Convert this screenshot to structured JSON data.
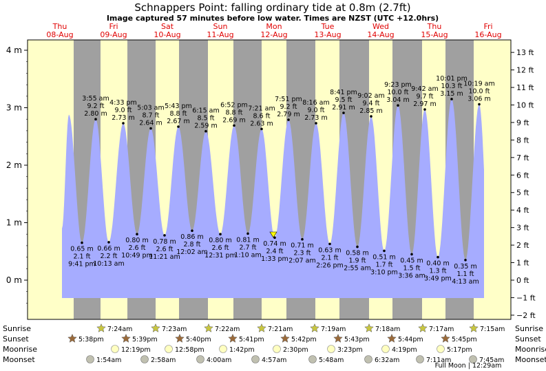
{
  "chart_data": {
    "type": "area",
    "title": "Schnappers Point: falling  ordinary tide at 0.8m (2.7ft)",
    "subtitle": "Image captured 57 minutes before low water. Times are NZST (UTC +12.0hrs)",
    "y_left": {
      "unit": "m",
      "range": [
        -0.5,
        4.2
      ],
      "ticks": [
        "0 m",
        "1 m",
        "2 m",
        "3 m",
        "4 m"
      ],
      "tick_values": [
        0,
        1,
        2,
        3,
        4
      ]
    },
    "y_right": {
      "unit": "ft",
      "ticks": [
        "−2 ft",
        "−1 ft",
        "0 ft",
        "1 ft",
        "2 ft",
        "3 ft",
        "4 ft",
        "5 ft",
        "6 ft",
        "7 ft",
        "8 ft",
        "9 ft",
        "10 ft",
        "11 ft",
        "12 ft",
        "13 ft"
      ],
      "tick_values": [
        -2,
        -1,
        0,
        1,
        2,
        3,
        4,
        5,
        6,
        7,
        8,
        9,
        10,
        11,
        12,
        13
      ]
    },
    "days": [
      {
        "name": "Thu",
        "date": "08-Aug"
      },
      {
        "name": "Fri",
        "date": "09-Aug"
      },
      {
        "name": "Sat",
        "date": "10-Aug"
      },
      {
        "name": "Sun",
        "date": "11-Aug"
      },
      {
        "name": "Mon",
        "date": "12-Aug"
      },
      {
        "name": "Tue",
        "date": "13-Aug"
      },
      {
        "name": "Wed",
        "date": "14-Aug"
      },
      {
        "name": "Thu",
        "date": "15-Aug"
      },
      {
        "name": "Fri",
        "date": "16-Aug"
      }
    ],
    "first_high_m": 2.88,
    "current": {
      "height_m": 0.8,
      "height_ft": 2.7,
      "state": "falling"
    },
    "extremes": [
      {
        "type": "low",
        "time": "9:41 pm",
        "m": "0.65 m",
        "ft": "2.1 ft",
        "value": 0.65
      },
      {
        "type": "high",
        "time": "3:55 am",
        "m": "2.80 m",
        "ft": "9.2 ft",
        "value": 2.8
      },
      {
        "type": "low",
        "time": "10:13 am",
        "m": "0.66 m",
        "ft": "2.2 ft",
        "value": 0.66
      },
      {
        "type": "high",
        "time": "4:33 pm",
        "m": "2.73 m",
        "ft": "9.0 ft",
        "value": 2.73
      },
      {
        "type": "low",
        "time": "10:49 pm",
        "m": "0.80 m",
        "ft": "2.6 ft",
        "value": 0.8
      },
      {
        "type": "high",
        "time": "5:03 am",
        "m": "2.64 m",
        "ft": "8.7 ft",
        "value": 2.64
      },
      {
        "type": "low",
        "time": "11:21 am",
        "m": "0.78 m",
        "ft": "2.6 ft",
        "value": 0.78
      },
      {
        "type": "high",
        "time": "5:43 pm",
        "m": "2.67 m",
        "ft": "8.8 ft",
        "value": 2.67
      },
      {
        "type": "low",
        "time": "12:02 am",
        "m": "0.86 m",
        "ft": "2.8 ft",
        "value": 0.86
      },
      {
        "type": "high",
        "time": "6:15 am",
        "m": "2.59 m",
        "ft": "8.5 ft",
        "value": 2.59
      },
      {
        "type": "low",
        "time": "12:31 pm",
        "m": "0.80 m",
        "ft": "2.6 ft",
        "value": 0.8
      },
      {
        "type": "high",
        "time": "6:52 pm",
        "m": "2.69 m",
        "ft": "8.8 ft",
        "value": 2.69
      },
      {
        "type": "low",
        "time": "1:10 am",
        "m": "0.81 m",
        "ft": "2.7 ft",
        "value": 0.81
      },
      {
        "type": "high",
        "time": "7:21 am",
        "m": "2.63 m",
        "ft": "8.6 ft",
        "value": 2.63
      },
      {
        "type": "low",
        "time": "1:33 pm",
        "m": "0.74 m",
        "ft": "2.4 ft",
        "value": 0.74
      },
      {
        "type": "high",
        "time": "7:51 pm",
        "m": "2.79 m",
        "ft": "9.2 ft",
        "value": 2.79
      },
      {
        "type": "low",
        "time": "2:07 am",
        "m": "0.71 m",
        "ft": "2.3 ft",
        "value": 0.71
      },
      {
        "type": "high",
        "time": "8:16 am",
        "m": "2.73 m",
        "ft": "9.0 ft",
        "value": 2.73
      },
      {
        "type": "low",
        "time": "2:26 pm",
        "m": "0.63 m",
        "ft": "2.1 ft",
        "value": 0.63
      },
      {
        "type": "high",
        "time": "8:41 pm",
        "m": "2.91 m",
        "ft": "9.5 ft",
        "value": 2.91
      },
      {
        "type": "low",
        "time": "2:55 am",
        "m": "0.58 m",
        "ft": "1.9 ft",
        "value": 0.58
      },
      {
        "type": "high",
        "time": "9:02 am",
        "m": "2.85 m",
        "ft": "9.4 ft",
        "value": 2.85
      },
      {
        "type": "low",
        "time": "3:10 pm",
        "m": "0.51 m",
        "ft": "1.7 ft",
        "value": 0.51
      },
      {
        "type": "high",
        "time": "9:23 pm",
        "m": "3.04 m",
        "ft": "10.0 ft",
        "value": 3.04
      },
      {
        "type": "low",
        "time": "3:36 am",
        "m": "0.45 m",
        "ft": "1.5 ft",
        "value": 0.45
      },
      {
        "type": "high",
        "time": "9:42 am",
        "m": "2.97 m",
        "ft": "9.7 ft",
        "value": 2.97
      },
      {
        "type": "low",
        "time": "3:49 pm",
        "m": "0.40 m",
        "ft": "1.3 ft",
        "value": 0.4
      },
      {
        "type": "high",
        "time": "10:01 pm",
        "m": "3.15 m",
        "ft": "10.3 ft",
        "value": 3.15
      },
      {
        "type": "low",
        "time": "4:13 am",
        "m": "0.35 m",
        "ft": "1.1 ft",
        "value": 0.35
      },
      {
        "type": "high",
        "time": "10:19 am",
        "m": "3.06 m",
        "ft": "10.0 ft",
        "value": 3.06
      }
    ],
    "rows": [
      {
        "label": "Sunrise",
        "events": [
          "7:24am",
          "7:23am",
          "7:22am",
          "7:21am",
          "7:19am",
          "7:18am",
          "7:17am",
          "7:15am"
        ]
      },
      {
        "label": "Sunset",
        "events": [
          "5:38pm",
          "5:39pm",
          "5:40pm",
          "5:41pm",
          "5:42pm",
          "5:43pm",
          "5:44pm",
          "5:45pm"
        ]
      },
      {
        "label": "Moonrise",
        "events": [
          "12:19pm",
          "12:58pm",
          "1:42pm",
          "2:30pm",
          "3:23pm",
          "4:19pm",
          "5:17pm"
        ]
      },
      {
        "label": "Moonset",
        "events": [
          "1:54am",
          "2:58am",
          "4:00am",
          "4:57am",
          "5:48am",
          "6:32am",
          "7:11am",
          "7:45am"
        ]
      }
    ],
    "moon_phase": "Full Moon | 12:29am",
    "colors": {
      "day": "#ffffc8",
      "night": "#a0a0a0",
      "water": "#a6acff",
      "day_label": "#e00000",
      "sun_star": "#c8c640",
      "sunset_star": "#9a6a3a",
      "moonrise": "#ffffc0",
      "moonset": "#c0c0b0"
    }
  }
}
